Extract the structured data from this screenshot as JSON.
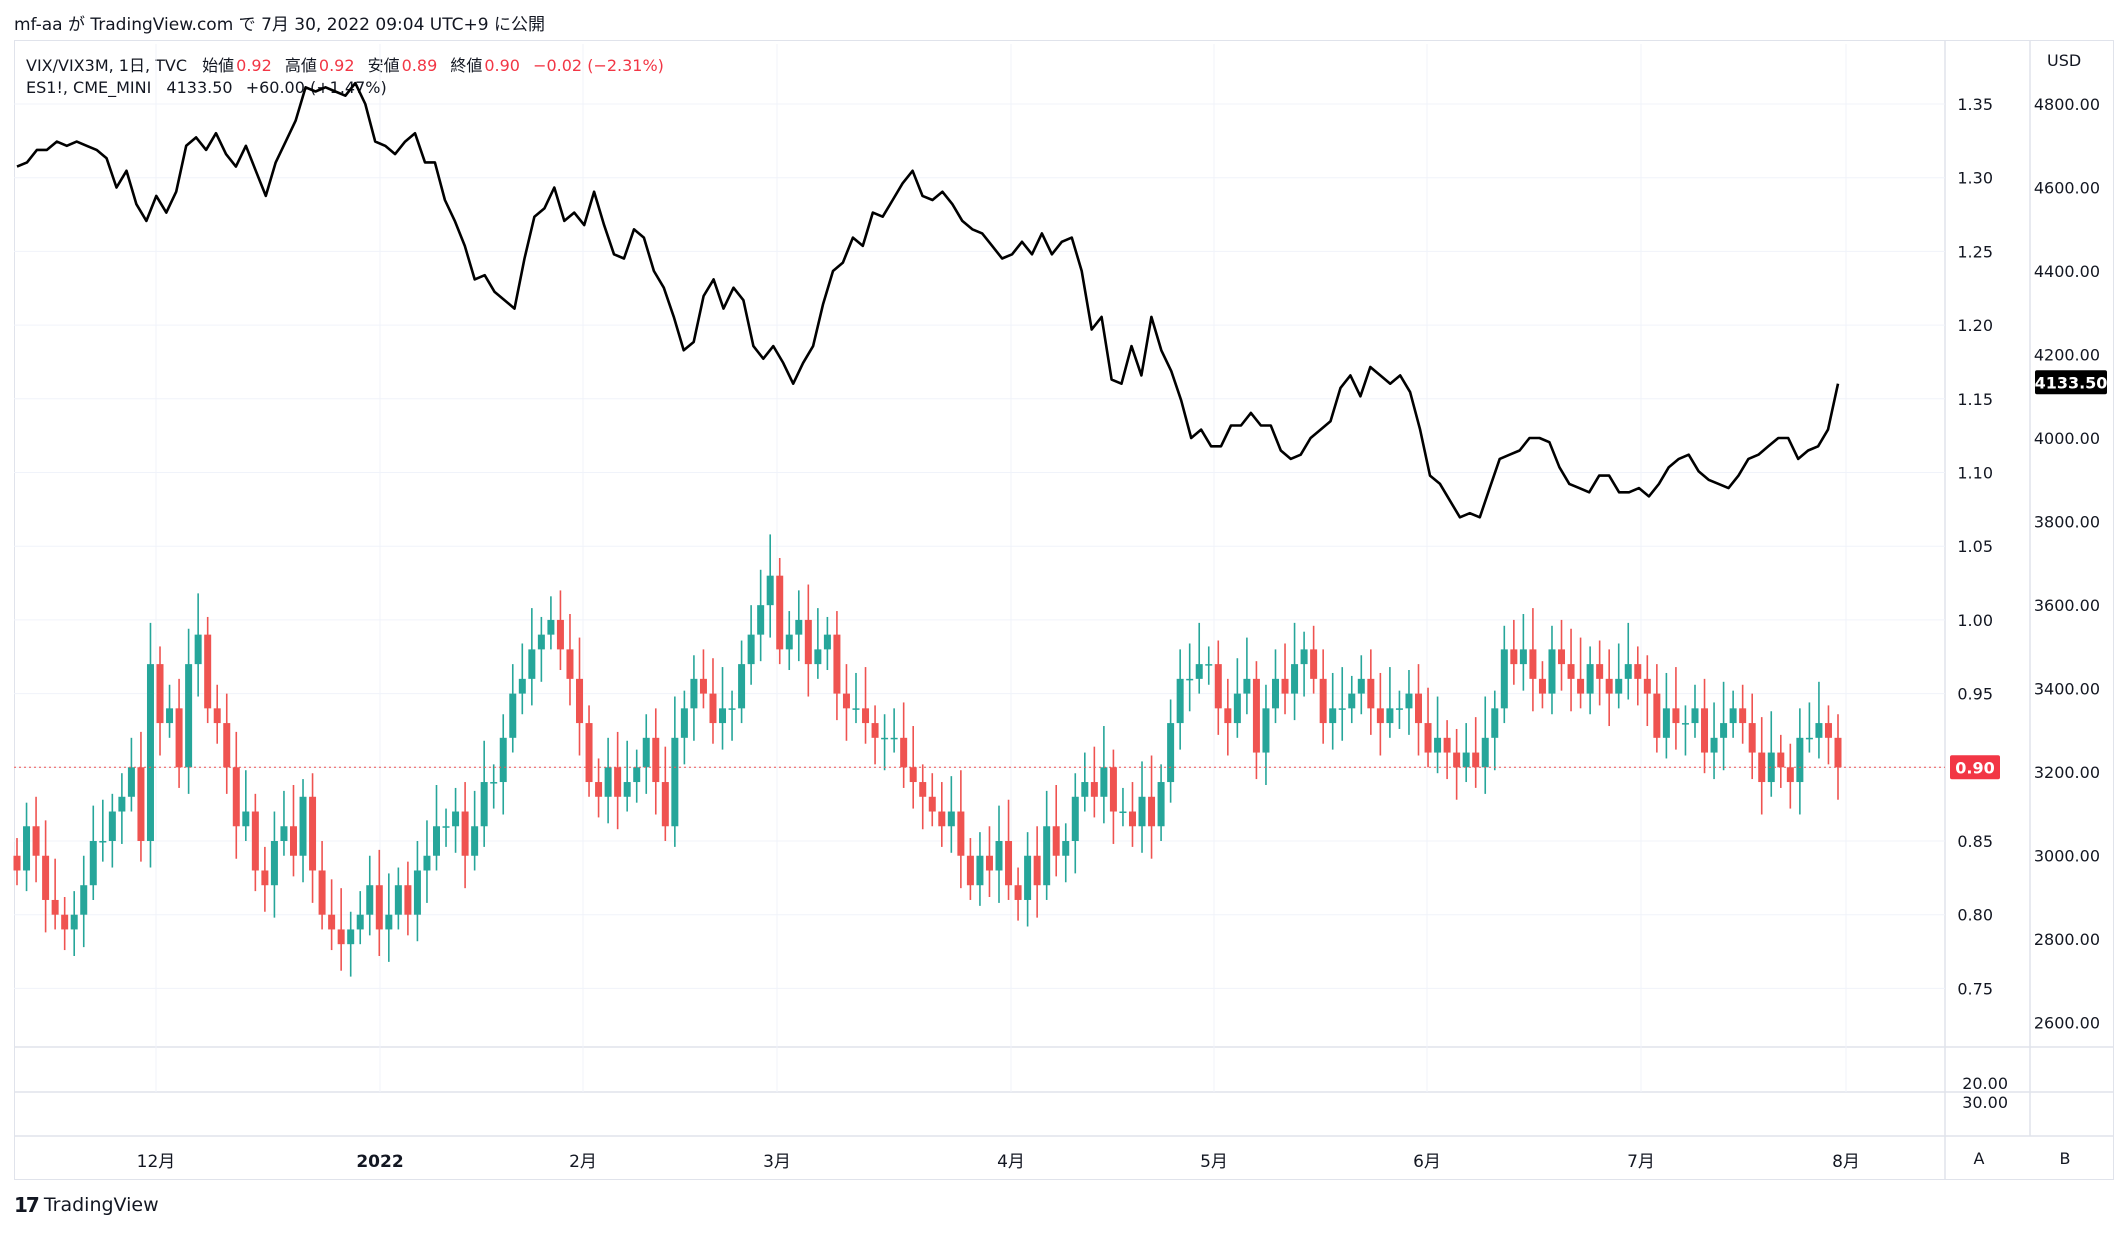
{
  "header": {
    "text": "mf-aa が TradingView.com で 7月 30, 2022 09:04 UTC+9 に公開"
  },
  "legend": {
    "main": {
      "symbol": "VIX/VIX3M, 1日, TVC",
      "open_label": "始値",
      "open": "0.92",
      "high_label": "高値",
      "high": "0.92",
      "low_label": "安値",
      "low": "0.89",
      "close_label": "終値",
      "close": "0.90",
      "change": "−0.02 (−2.31%)"
    },
    "overlay": {
      "symbol": "ES1!, CME_MINI",
      "last": "4133.50",
      "change": "+60.00 (+1.47%)"
    }
  },
  "axis": {
    "currency": "USD",
    "scale_a_label": "A",
    "scale_b_label": "B",
    "main_ticks": [
      "1.35",
      "1.30",
      "1.25",
      "1.20",
      "1.15",
      "1.10",
      "1.05",
      "1.00",
      "0.95",
      "0.90",
      "0.85",
      "0.80",
      "0.75"
    ],
    "overlay_ticks": [
      "4800.00",
      "4600.00",
      "4400.00",
      "4200.00",
      "4000.00",
      "3800.00",
      "3600.00",
      "3400.00",
      "3200.00",
      "3000.00",
      "2800.00",
      "2600.00"
    ],
    "sub_ticks": [
      "20.00",
      "30.00"
    ],
    "x_ticks": [
      "12月",
      "2022",
      "2月",
      "3月",
      "4月",
      "5月",
      "6月",
      "7月",
      "8月"
    ],
    "last_overlay_badge": "4133.50",
    "last_main_badge": "0.90"
  },
  "chart_data": {
    "type": "line",
    "x_ticks": [
      "12月",
      "2022",
      "2月",
      "3月",
      "4月",
      "5月",
      "6月",
      "7月",
      "8月"
    ],
    "series": [
      {
        "name": "VIX/VIX3M",
        "kind": "candlestick",
        "up_color": "#26a69a",
        "down_color": "#ef5350",
        "values": [
          0.83,
          0.86,
          0.84,
          0.81,
          0.8,
          0.79,
          0.8,
          0.82,
          0.85,
          0.85,
          0.87,
          0.88,
          0.9,
          0.85,
          0.97,
          0.93,
          0.94,
          0.9,
          0.97,
          0.99,
          0.94,
          0.93,
          0.9,
          0.86,
          0.87,
          0.83,
          0.82,
          0.85,
          0.86,
          0.84,
          0.88,
          0.83,
          0.8,
          0.79,
          0.78,
          0.79,
          0.8,
          0.82,
          0.79,
          0.8,
          0.82,
          0.8,
          0.83,
          0.84,
          0.86,
          0.86,
          0.87,
          0.84,
          0.86,
          0.89,
          0.89,
          0.92,
          0.95,
          0.96,
          0.98,
          0.99,
          1.0,
          0.98,
          0.96,
          0.93,
          0.89,
          0.88,
          0.9,
          0.88,
          0.89,
          0.9,
          0.92,
          0.89,
          0.86,
          0.92,
          0.94,
          0.96,
          0.95,
          0.93,
          0.94,
          0.94,
          0.97,
          0.99,
          1.01,
          1.03,
          0.98,
          0.99,
          1.0,
          0.97,
          0.98,
          0.99,
          0.95,
          0.94,
          0.94,
          0.93,
          0.92,
          0.92,
          0.92,
          0.9,
          0.89,
          0.88,
          0.87,
          0.86,
          0.87,
          0.84,
          0.82,
          0.84,
          0.83,
          0.85,
          0.82,
          0.81,
          0.84,
          0.82,
          0.86,
          0.84,
          0.85,
          0.88,
          0.89,
          0.88,
          0.9,
          0.87,
          0.87,
          0.86,
          0.88,
          0.86,
          0.89,
          0.93,
          0.96,
          0.96,
          0.97,
          0.97,
          0.94,
          0.93,
          0.95,
          0.96,
          0.91,
          0.94,
          0.96,
          0.95,
          0.97,
          0.98,
          0.96,
          0.93,
          0.94,
          0.94,
          0.95,
          0.96,
          0.94,
          0.93,
          0.94,
          0.94,
          0.95,
          0.93,
          0.91,
          0.92,
          0.91,
          0.9,
          0.91,
          0.9,
          0.92,
          0.94,
          0.98,
          0.97,
          0.98,
          0.96,
          0.95,
          0.98,
          0.97,
          0.96,
          0.95,
          0.97,
          0.96,
          0.95,
          0.96,
          0.97,
          0.96,
          0.95,
          0.92,
          0.94,
          0.93,
          0.93,
          0.94,
          0.91,
          0.92,
          0.93,
          0.94,
          0.93,
          0.91,
          0.89,
          0.91,
          0.9,
          0.89,
          0.92,
          0.92,
          0.93,
          0.92,
          0.9
        ]
      },
      {
        "name": "ES1!",
        "kind": "line",
        "color": "#000000",
        "values": [
          4650,
          4660,
          4690,
          4690,
          4710,
          4700,
          4710,
          4700,
          4690,
          4670,
          4600,
          4640,
          4560,
          4520,
          4580,
          4540,
          4590,
          4700,
          4720,
          4690,
          4730,
          4680,
          4650,
          4700,
          4640,
          4580,
          4660,
          4710,
          4760,
          4840,
          4830,
          4840,
          4830,
          4820,
          4850,
          4800,
          4710,
          4700,
          4680,
          4710,
          4730,
          4660,
          4660,
          4570,
          4520,
          4460,
          4380,
          4390,
          4350,
          4330,
          4310,
          4430,
          4530,
          4550,
          4600,
          4520,
          4540,
          4510,
          4590,
          4510,
          4440,
          4430,
          4500,
          4480,
          4400,
          4360,
          4290,
          4210,
          4230,
          4340,
          4380,
          4310,
          4360,
          4330,
          4220,
          4190,
          4220,
          4180,
          4130,
          4180,
          4220,
          4320,
          4400,
          4420,
          4480,
          4460,
          4540,
          4530,
          4570,
          4610,
          4640,
          4580,
          4570,
          4590,
          4560,
          4520,
          4500,
          4490,
          4460,
          4430,
          4440,
          4470,
          4440,
          4490,
          4440,
          4470,
          4480,
          4400,
          4260,
          4290,
          4140,
          4130,
          4220,
          4150,
          4290,
          4210,
          4160,
          4090,
          4000,
          4020,
          3980,
          3980,
          4030,
          4030,
          4060,
          4030,
          4030,
          3970,
          3950,
          3960,
          4000,
          4020,
          4040,
          4120,
          4150,
          4100,
          4170,
          4150,
          4130,
          4150,
          4110,
          4020,
          3910,
          3890,
          3850,
          3810,
          3820,
          3810,
          3880,
          3950,
          3960,
          3970,
          4000,
          4000,
          3990,
          3930,
          3890,
          3880,
          3870,
          3910,
          3910,
          3870,
          3870,
          3880,
          3860,
          3890,
          3930,
          3950,
          3960,
          3920,
          3900,
          3890,
          3880,
          3910,
          3950,
          3960,
          3980,
          4000,
          4000,
          3950,
          3970,
          3980,
          4020,
          4130
        ]
      }
    ],
    "ylim_main": [
      0.72,
      1.37
    ],
    "ylim_overlay": [
      2600,
      4800
    ],
    "last_close_main": 0.9,
    "last_close_overlay": 4133.5
  }
}
